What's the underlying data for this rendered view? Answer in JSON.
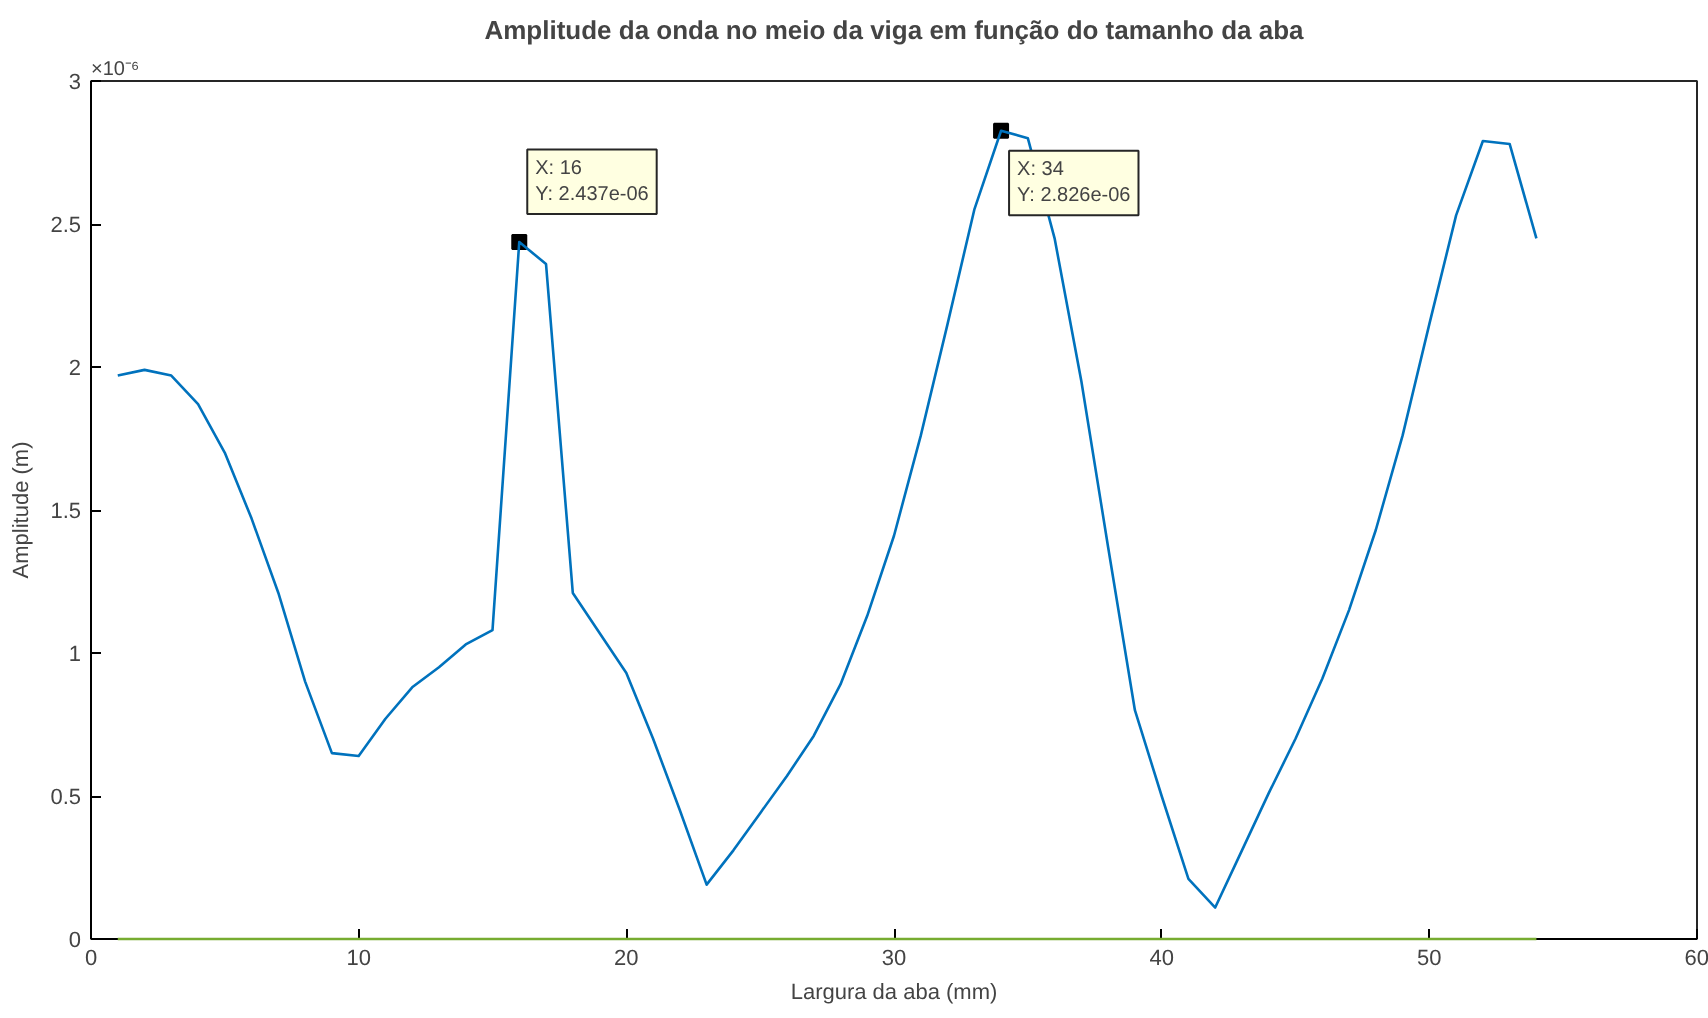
{
  "chart_data": {
    "type": "line",
    "title": "Amplitude da onda no meio da viga em função do tamanho da aba",
    "xlabel": "Largura da aba (mm)",
    "ylabel": "Amplitude (m)",
    "x": [
      1,
      2,
      3,
      4,
      5,
      6,
      7,
      8,
      9,
      10,
      11,
      12,
      13,
      14,
      15,
      16,
      17,
      18,
      19,
      20,
      21,
      22,
      23,
      24,
      25,
      26,
      27,
      28,
      29,
      30,
      31,
      32,
      33,
      34,
      35,
      36,
      37,
      38,
      39,
      40,
      41,
      42,
      43,
      44,
      45,
      46,
      47,
      48,
      49,
      50,
      51,
      52,
      53,
      54
    ],
    "series": [
      {
        "color": "#0072bd",
        "values": [
          1.97,
          1.99,
          1.97,
          1.87,
          1.7,
          1.47,
          1.21,
          0.9,
          0.65,
          0.64,
          0.77,
          0.88,
          0.95,
          1.03,
          1.08,
          2.437,
          2.36,
          1.21,
          1.07,
          0.93,
          0.7,
          0.45,
          0.19,
          0.31,
          0.44,
          0.57,
          0.71,
          0.89,
          1.13,
          1.41,
          1.76,
          2.15,
          2.55,
          2.826,
          2.8,
          2.45,
          1.95,
          1.37,
          0.8,
          0.5,
          0.21,
          0.11,
          0.31,
          0.51,
          0.7,
          0.91,
          1.15,
          1.43,
          1.76,
          2.15,
          2.53,
          2.79,
          2.78,
          2.45
        ]
      },
      {
        "color": "#77ac30",
        "values": [
          0,
          0,
          0,
          0,
          0,
          0,
          0,
          0,
          0,
          0,
          0,
          0,
          0,
          0,
          0,
          0,
          0,
          0,
          0,
          0,
          0,
          0,
          0,
          0,
          0,
          0,
          0,
          0,
          0,
          0,
          0,
          0,
          0,
          0,
          0,
          0,
          0,
          0,
          0,
          0,
          0,
          0,
          0,
          0,
          0,
          0,
          0,
          0,
          0,
          0,
          0,
          0,
          0,
          0
        ]
      }
    ],
    "xlim": [
      0,
      60
    ],
    "xticks": [
      0,
      10,
      20,
      30,
      40,
      50,
      60
    ],
    "ylim": [
      0,
      3
    ],
    "yticks": [
      0,
      0.5,
      1,
      1.5,
      2,
      2.5,
      3
    ],
    "annotations": [
      "×10⁻⁶",
      {
        "text": "X: 16\nY: 2.437e-06",
        "x": 16,
        "y": 2.437
      },
      {
        "text": "X: 34\nY: 2.826e-06",
        "x": 34,
        "y": 2.826
      }
    ],
    "grid": false
  }
}
